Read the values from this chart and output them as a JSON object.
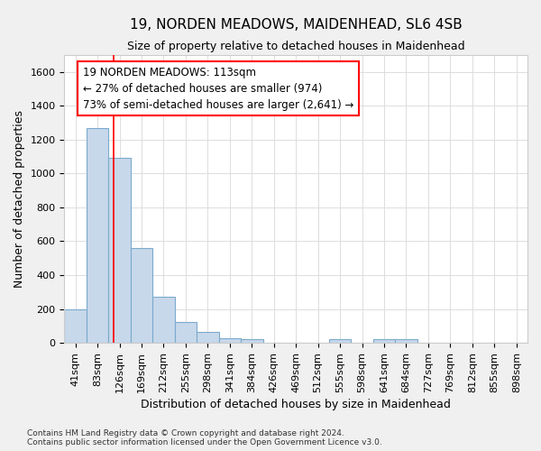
{
  "title1": "19, NORDEN MEADOWS, MAIDENHEAD, SL6 4SB",
  "title2": "Size of property relative to detached houses in Maidenhead",
  "xlabel": "Distribution of detached houses by size in Maidenhead",
  "ylabel": "Number of detached properties",
  "footnote1": "Contains HM Land Registry data © Crown copyright and database right 2024.",
  "footnote2": "Contains public sector information licensed under the Open Government Licence v3.0.",
  "bin_labels": [
    "41sqm",
    "83sqm",
    "126sqm",
    "169sqm",
    "212sqm",
    "255sqm",
    "298sqm",
    "341sqm",
    "384sqm",
    "426sqm",
    "469sqm",
    "512sqm",
    "555sqm",
    "598sqm",
    "641sqm",
    "684sqm",
    "727sqm",
    "769sqm",
    "812sqm",
    "855sqm",
    "898sqm"
  ],
  "bar_values": [
    200,
    1270,
    1090,
    560,
    275,
    125,
    65,
    30,
    25,
    0,
    0,
    0,
    25,
    0,
    20,
    20,
    0,
    0,
    0,
    0,
    0
  ],
  "bar_color": "#c8d8eb",
  "bar_edge_color": "#7aaacc",
  "property_line_x": 1.72,
  "property_line_color": "red",
  "annotation_text": "19 NORDEN MEADOWS: 113sqm\n← 27% of detached houses are smaller (974)\n73% of semi-detached houses are larger (2,641) →",
  "annotation_box_color": "white",
  "annotation_box_edge": "red",
  "ylim": [
    0,
    1700
  ],
  "yticks": [
    0,
    200,
    400,
    600,
    800,
    1000,
    1200,
    1400,
    1600
  ],
  "background_color": "#f0f0f0",
  "plot_bg_color": "white",
  "grid_color": "#dddddd",
  "title_fontsize": 11,
  "subtitle_fontsize": 9,
  "axis_label_fontsize": 9,
  "tick_fontsize": 8,
  "annotation_fontsize": 8.5,
  "footnote_fontsize": 6.5
}
